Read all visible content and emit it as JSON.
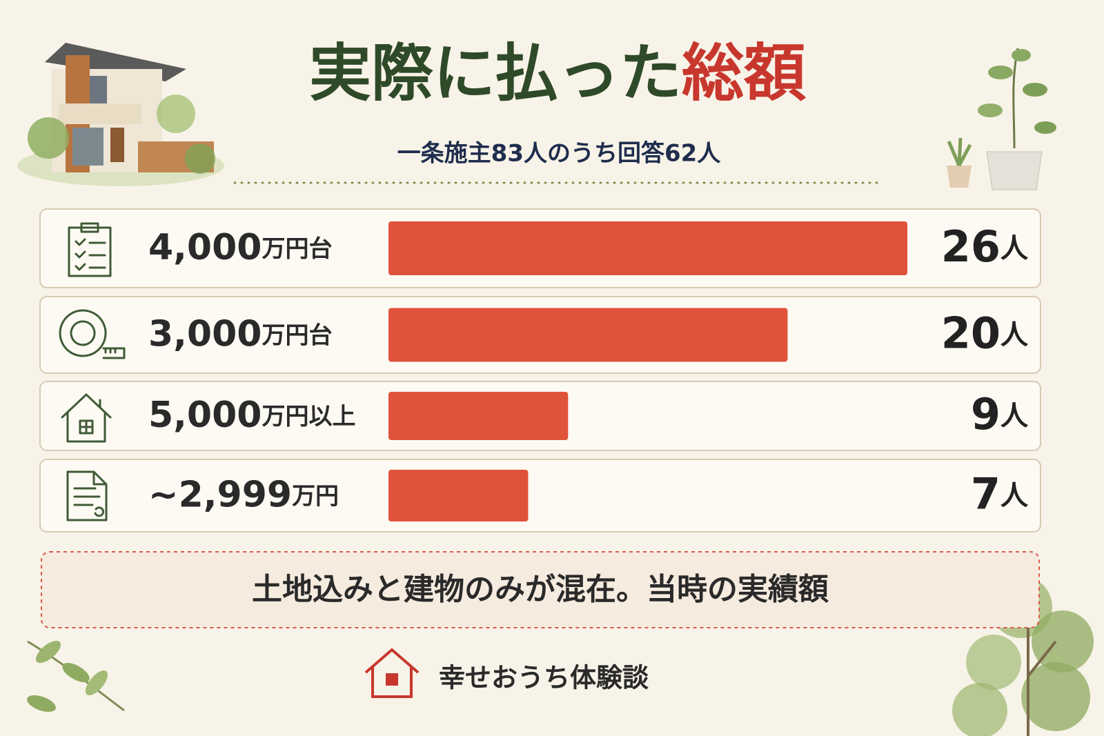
{
  "chart_data": {
    "type": "bar",
    "title": "実際に払った",
    "title_highlight": "総額",
    "subtitle": "一条施主83人のうち回答62人",
    "categories": [
      "4,000万円台",
      "3,000万円台",
      "5,000万円以上",
      "~2,999万円"
    ],
    "values": [
      26,
      20,
      9,
      7
    ],
    "value_labels": [
      "26人",
      "20人",
      "9人",
      "7人"
    ],
    "color": "#e0533b",
    "note": "土地込みと建物のみが混在。当時の実績額",
    "brand": "幸せおうち体験談"
  }
}
